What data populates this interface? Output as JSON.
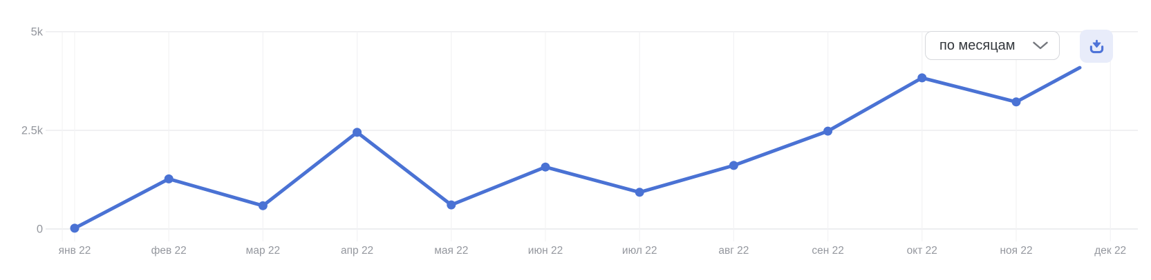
{
  "toolbar": {
    "period_dropdown": {
      "value": "по месяцам"
    }
  },
  "chart_data": {
    "type": "line",
    "title": "",
    "xlabel": "",
    "ylabel": "",
    "categories": [
      "янв 22",
      "фев 22",
      "мар 22",
      "апр 22",
      "мая 22",
      "июн 22",
      "июл 22",
      "авг 22",
      "сен 22",
      "окт 22",
      "ноя 22",
      "дек 22"
    ],
    "values": [
      20,
      1270,
      590,
      2450,
      610,
      1570,
      930,
      1610,
      2480,
      3830,
      3220,
      4090
    ],
    "ylim": [
      0,
      5000
    ],
    "yticks": [
      {
        "value": 0,
        "label": "0"
      },
      {
        "value": 2500,
        "label": "2.5k"
      },
      {
        "value": 5000,
        "label": "5k"
      }
    ],
    "grid": true,
    "legend": "none",
    "line_color": "#4a72d4",
    "marker_color": "#4a72d4",
    "last_point_has_marker": false
  },
  "colors": {
    "accent_blue": "#4a72d4",
    "download_button_bg": "#e8ecfa",
    "grid_h": "#e7e8eb",
    "grid_zero": "#e2e3e7",
    "grid_v": "#f2f2f4",
    "axis_label": "#94979e",
    "dropdown_border": "#d5d7db",
    "dropdown_text": "#33373c",
    "chevron": "#75787e"
  }
}
